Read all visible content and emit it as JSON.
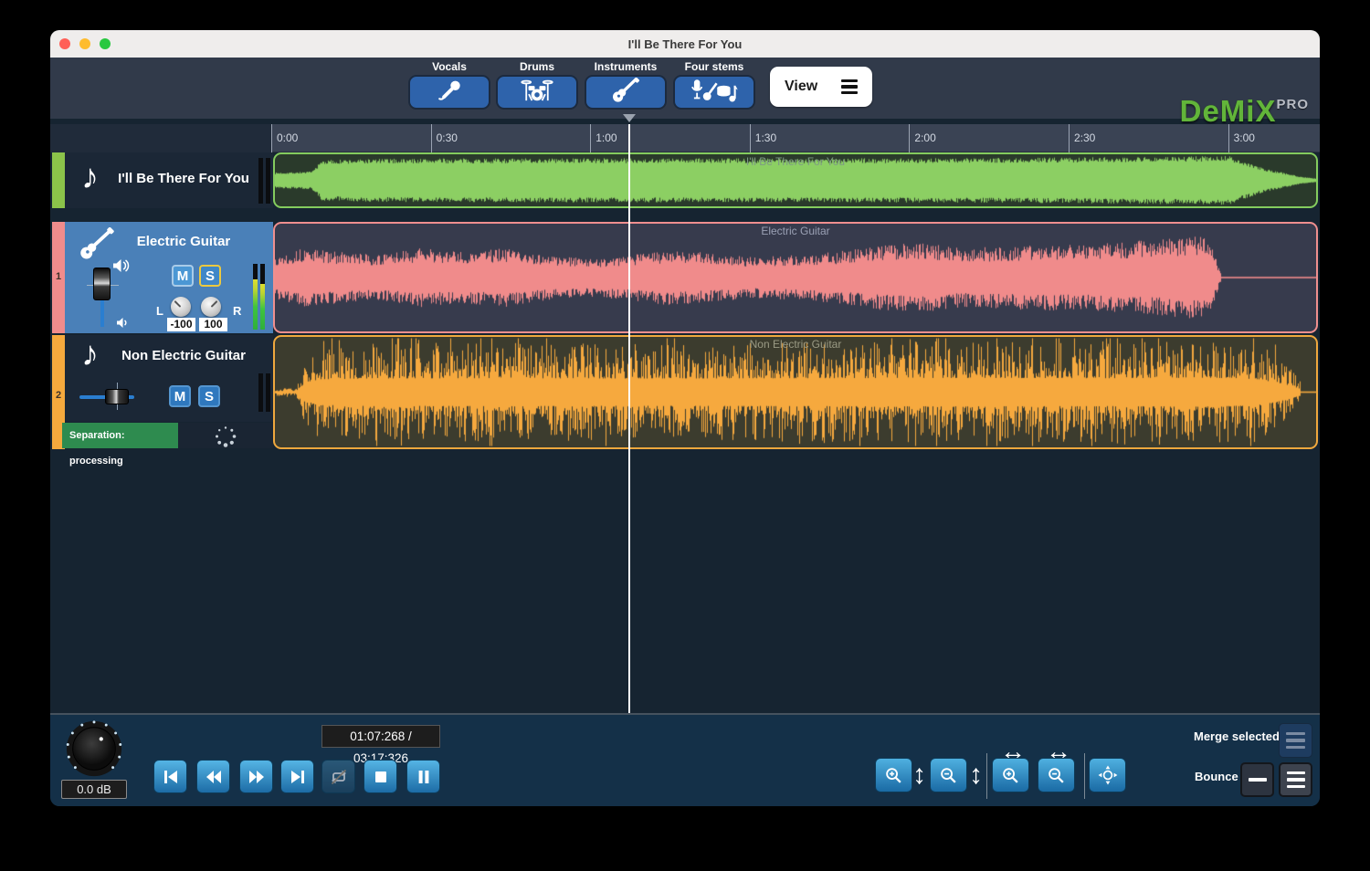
{
  "titlebar": {
    "title": "I'll Be There For You"
  },
  "toolbar": {
    "stems": [
      {
        "label": "Vocals",
        "icon": "microphone-icon"
      },
      {
        "label": "Drums",
        "icon": "drum-kit-icon"
      },
      {
        "label": "Instruments",
        "icon": "guitar-icon"
      },
      {
        "label": "Four stems",
        "icon": "four-stems-icon"
      }
    ],
    "view": "View",
    "logo": {
      "brand": "DeMiX",
      "tier": "PRO",
      "brand_color": "#62b53a"
    }
  },
  "timeline": {
    "ticks": [
      "0:00",
      "0:30",
      "1:00",
      "1:30",
      "2:00",
      "2:30",
      "3:00"
    ],
    "tick_seconds": [
      0,
      30,
      60,
      90,
      120,
      150,
      180
    ],
    "playhead_seconds": 67.268
  },
  "labels": {
    "mute": "M",
    "solo": "S",
    "left": "L",
    "right": "R"
  },
  "tracks": [
    {
      "name": "I'll Be There For You",
      "region_label": "I'll Be There For You",
      "number": "",
      "color": "#8bc34a",
      "waveform": {
        "seed": 7,
        "style": "dense",
        "color": "#8ccf63",
        "end": 2,
        "env": [
          [
            0,
            0.3
          ],
          [
            0.035,
            0.34
          ],
          [
            0.045,
            0.78
          ],
          [
            0.1,
            0.83
          ],
          [
            0.3,
            0.85
          ],
          [
            0.5,
            0.84
          ],
          [
            0.7,
            0.86
          ],
          [
            0.88,
            0.92
          ],
          [
            0.915,
            0.95
          ],
          [
            0.93,
            0.72
          ],
          [
            0.95,
            0.45
          ],
          [
            0.97,
            0.28
          ],
          [
            0.985,
            0.14
          ],
          [
            1,
            0.07
          ]
        ]
      }
    },
    {
      "name": "Electric Guitar",
      "region_label": "Electric Guitar",
      "number": "1",
      "color": "#f08c8c",
      "pan_left": "-100",
      "pan_right": "100",
      "waveform": {
        "seed": 13,
        "style": "jagged",
        "color": "#f08b8b",
        "end": 0.908,
        "env": [
          [
            0,
            0.42
          ],
          [
            0.03,
            0.55
          ],
          [
            0.06,
            0.48
          ],
          [
            0.1,
            0.42
          ],
          [
            0.14,
            0.55
          ],
          [
            0.18,
            0.48
          ],
          [
            0.22,
            0.55
          ],
          [
            0.26,
            0.42
          ],
          [
            0.3,
            0.35
          ],
          [
            0.34,
            0.42
          ],
          [
            0.38,
            0.52
          ],
          [
            0.42,
            0.45
          ],
          [
            0.46,
            0.38
          ],
          [
            0.5,
            0.42
          ],
          [
            0.54,
            0.48
          ],
          [
            0.58,
            0.6
          ],
          [
            0.62,
            0.65
          ],
          [
            0.66,
            0.55
          ],
          [
            0.7,
            0.58
          ],
          [
            0.74,
            0.62
          ],
          [
            0.78,
            0.6
          ],
          [
            0.82,
            0.68
          ],
          [
            0.86,
            0.72
          ],
          [
            0.89,
            0.78
          ],
          [
            0.9,
            0.6
          ],
          [
            0.905,
            0.25
          ],
          [
            0.908,
            0.1
          ]
        ]
      }
    },
    {
      "name": "Non Electric Guitar",
      "region_label": "Non Electric Guitar",
      "number": "2",
      "color": "#f5a93d",
      "status": "Separation: processing",
      "status_color": "#2e8b4f",
      "waveform": {
        "seed": 23,
        "style": "spiky",
        "color": "#f6a93e",
        "end": 0.985,
        "env": [
          [
            0,
            0.07
          ],
          [
            0.02,
            0.08
          ],
          [
            0.028,
            0.55
          ],
          [
            0.04,
            0.8
          ],
          [
            0.08,
            0.88
          ],
          [
            0.2,
            0.9
          ],
          [
            0.35,
            0.88
          ],
          [
            0.5,
            0.9
          ],
          [
            0.65,
            0.92
          ],
          [
            0.8,
            0.9
          ],
          [
            0.9,
            0.93
          ],
          [
            0.94,
            0.85
          ],
          [
            0.96,
            0.65
          ],
          [
            0.975,
            0.42
          ],
          [
            0.985,
            0.2
          ]
        ]
      }
    }
  ],
  "transport": {
    "volume": "0.0 dB",
    "time_display": "01:07:268 / 03:17:326",
    "buttons": [
      "skip-to-start",
      "rewind",
      "fast-forward",
      "skip-to-end",
      "loop",
      "stop",
      "pause"
    ],
    "merge_label": "Merge selected",
    "bounce_label": "Bounce"
  }
}
